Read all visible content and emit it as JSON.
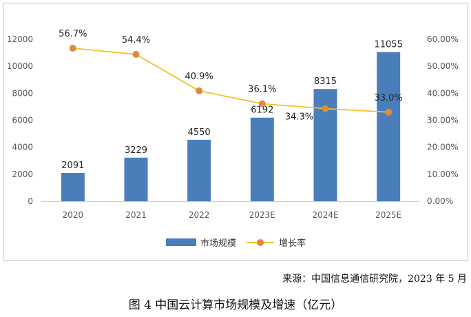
{
  "chart_data": {
    "type": "bar",
    "categories": [
      "2020",
      "2021",
      "2022",
      "2023E",
      "2024E",
      "2025E"
    ],
    "series": [
      {
        "name": "市场规模",
        "type": "bar",
        "axis": "left",
        "color": "#4a7ebb",
        "values": [
          2091,
          3229,
          4550,
          6192,
          8315,
          11055
        ],
        "labels": [
          "2091",
          "3229",
          "4550",
          "6192",
          "8315",
          "11055"
        ]
      },
      {
        "name": "增长率",
        "type": "line",
        "axis": "right",
        "color": "#f2c12e",
        "marker_color": "#e08a3c",
        "values": [
          56.7,
          54.4,
          40.9,
          36.1,
          34.3,
          33.0
        ],
        "labels": [
          "56.7%",
          "54.4%",
          "40.9%",
          "36.1%",
          "34.3%",
          "33.0%"
        ]
      }
    ],
    "y_left": {
      "ylim": [
        0,
        12000
      ],
      "ticks": [
        "0",
        "2000",
        "4000",
        "6000",
        "8000",
        "10000",
        "12000"
      ]
    },
    "y_right": {
      "ylim": [
        0,
        60
      ],
      "ticks": [
        "0.00%",
        "10.00%",
        "20.00%",
        "30.00%",
        "40.00%",
        "50.00%",
        "60.00%"
      ]
    },
    "legend": {
      "position": "bottom",
      "items": [
        "市场规模",
        "增长率"
      ]
    }
  },
  "source": "来源：中国信息通信研究院，2023 年 5 月",
  "caption": "图 4  中国云计算市场规模及增速（亿元）"
}
